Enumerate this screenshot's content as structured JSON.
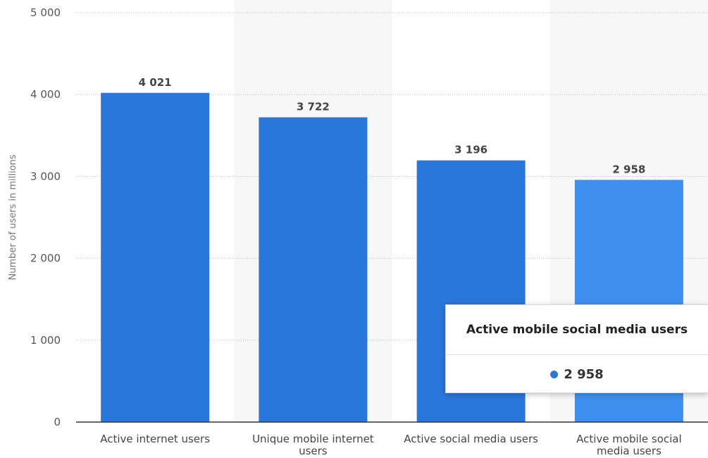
{
  "chart_data": {
    "type": "bar",
    "categories": [
      [
        "Active internet users"
      ],
      [
        "Unique mobile internet",
        "users"
      ],
      [
        "Active social media users"
      ],
      [
        "Active mobile social",
        "media users"
      ]
    ],
    "values": [
      4021,
      3722,
      3196,
      2958
    ],
    "value_labels": [
      "4 021",
      "3 722",
      "3 196",
      "2 958"
    ],
    "title": "",
    "xlabel": "",
    "ylabel": "Number of users in millions",
    "ylim": [
      0,
      5000
    ],
    "yticks": [
      0,
      1000,
      2000,
      3000,
      4000,
      5000
    ],
    "ytick_labels": [
      "0",
      "1 000",
      "2 000",
      "3 000",
      "4 000",
      "5 000"
    ],
    "grid": true,
    "legend": "none",
    "bar_color": "#2a77dc",
    "highlight_color": "#3f8ff0",
    "highlighted_index": 3,
    "band_color": "#f7f7f7",
    "grid_color": "#bdbdbd"
  },
  "tooltip": {
    "title": "Active mobile social media users",
    "value": "2 958",
    "dot_color": "#2a77dc"
  }
}
